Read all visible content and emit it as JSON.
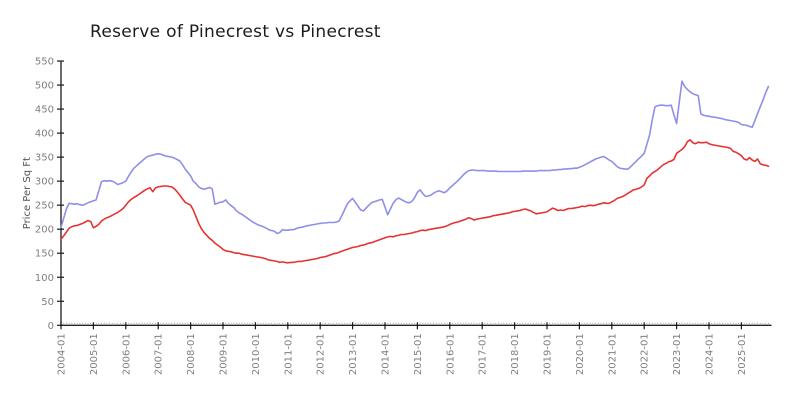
{
  "title": "Reserve of Pinecrest vs Pinecrest",
  "chart_data": {
    "type": "line",
    "title": "Reserve of Pinecrest vs Pinecrest",
    "xlabel": "",
    "ylabel": "Price Per Sq Ft",
    "ylim": [
      0,
      550
    ],
    "ytick_step": 50,
    "ytick_labels": [
      "0",
      "50",
      "100",
      "150",
      "200",
      "250",
      "300",
      "350",
      "400",
      "450",
      "500",
      "550"
    ],
    "x_start": "2004-01",
    "x_end": "2025-11",
    "x_frequency": "monthly",
    "xtick_labels": [
      "2004-01",
      "2005-01",
      "2006-01",
      "2007-01",
      "2008-01",
      "2009-01",
      "2010-01",
      "2011-01",
      "2012-01",
      "2013-01",
      "2014-01",
      "2015-01",
      "2016-01",
      "2017-01",
      "2018-01",
      "2019-01",
      "2020-01",
      "2021-01",
      "2022-01",
      "2023-01",
      "2024-01",
      "2025-01"
    ],
    "grid": false,
    "legend_position": "none",
    "axis_color": "#1a1a1a",
    "tick_label_color": "#7f7f7f",
    "series": [
      {
        "name": "Reserve of Pinecrest",
        "color": "#8f8fe8",
        "values": [
          204,
          223,
          242,
          254,
          253,
          252,
          253,
          251,
          250,
          252,
          255,
          257,
          259,
          261,
          280,
          299,
          301,
          300,
          301,
          300,
          297,
          293,
          295,
          297,
          300,
          310,
          319,
          327,
          332,
          337,
          342,
          347,
          351,
          353,
          354,
          356,
          357,
          356,
          354,
          352,
          351,
          350,
          348,
          345,
          342,
          334,
          325,
          318,
          311,
          300,
          295,
          288,
          285,
          283,
          285,
          287,
          284,
          252,
          254,
          256,
          257,
          261,
          254,
          249,
          245,
          238,
          234,
          231,
          227,
          223,
          219,
          215,
          212,
          209,
          207,
          205,
          202,
          199,
          197,
          196,
          191,
          193,
          199,
          198,
          198,
          199,
          199,
          201,
          203,
          204,
          205,
          207,
          208,
          209,
          210,
          211,
          212,
          213,
          213,
          214,
          214,
          214,
          215,
          217,
          228,
          240,
          252,
          259,
          264,
          256,
          248,
          240,
          238,
          244,
          250,
          255,
          257,
          259,
          261,
          262,
          246,
          230,
          242,
          254,
          261,
          265,
          262,
          259,
          256,
          255,
          258,
          266,
          277,
          282,
          274,
          268,
          269,
          271,
          275,
          278,
          280,
          278,
          276,
          280,
          286,
          291,
          296,
          301,
          307,
          313,
          318,
          322,
          323,
          323,
          322,
          322,
          322,
          322,
          321,
          321,
          321,
          321,
          320,
          320,
          320,
          320,
          320,
          320,
          320,
          320,
          320,
          321,
          321,
          321,
          321,
          321,
          321,
          322,
          322,
          322,
          322,
          322,
          323,
          323,
          324,
          324,
          325,
          325,
          326,
          326,
          327,
          327,
          329,
          331,
          334,
          337,
          340,
          343,
          346,
          348,
          350,
          351,
          348,
          344,
          341,
          336,
          330,
          327,
          326,
          325,
          325,
          330,
          336,
          341,
          347,
          352,
          358,
          377,
          396,
          428,
          455,
          457,
          458,
          458,
          457,
          457,
          458,
          438,
          420,
          465,
          508,
          497,
          491,
          486,
          482,
          480,
          478,
          440,
          437,
          436,
          435,
          434,
          433,
          432,
          431,
          430,
          428,
          427,
          426,
          425,
          424,
          422,
          418,
          417,
          416,
          414,
          412,
          426,
          441,
          455,
          469,
          484,
          497
        ]
      },
      {
        "name": "Pinecrest",
        "color": "#e53333",
        "values": [
          179,
          186,
          194,
          202,
          205,
          207,
          208,
          210,
          212,
          215,
          218,
          216,
          203,
          206,
          210,
          217,
          221,
          224,
          226,
          229,
          232,
          235,
          239,
          243,
          250,
          257,
          262,
          266,
          269,
          273,
          277,
          281,
          284,
          286,
          278,
          286,
          288,
          289,
          290,
          290,
          289,
          288,
          284,
          278,
          271,
          263,
          256,
          253,
          250,
          240,
          226,
          212,
          201,
          193,
          187,
          181,
          177,
          171,
          167,
          163,
          158,
          155,
          154,
          153,
          151,
          150,
          150,
          148,
          147,
          146,
          145,
          144,
          143,
          142,
          141,
          140,
          138,
          136,
          135,
          134,
          133,
          131,
          132,
          131,
          130,
          131,
          131,
          132,
          133,
          133,
          134,
          135,
          136,
          137,
          138,
          139,
          141,
          142,
          143,
          145,
          147,
          149,
          150,
          152,
          154,
          156,
          158,
          160,
          162,
          163,
          164,
          166,
          167,
          169,
          171,
          172,
          174,
          176,
          178,
          180,
          182,
          184,
          185,
          184,
          186,
          187,
          189,
          189,
          190,
          191,
          192,
          194,
          195,
          197,
          198,
          197,
          199,
          200,
          201,
          202,
          203,
          204,
          205,
          207,
          210,
          212,
          214,
          215,
          217,
          219,
          221,
          224,
          222,
          219,
          221,
          222,
          223,
          224,
          225,
          226,
          228,
          229,
          230,
          231,
          232,
          233,
          234,
          236,
          237,
          238,
          239,
          241,
          242,
          240,
          238,
          235,
          232,
          233,
          234,
          235,
          236,
          240,
          244,
          242,
          239,
          240,
          239,
          241,
          243,
          243,
          244,
          245,
          246,
          248,
          247,
          249,
          250,
          249,
          250,
          252,
          253,
          255,
          254,
          254,
          257,
          260,
          264,
          266,
          268,
          271,
          275,
          278,
          282,
          283,
          285,
          288,
          292,
          306,
          311,
          317,
          320,
          324,
          329,
          334,
          337,
          340,
          342,
          345,
          358,
          362,
          366,
          372,
          382,
          386,
          380,
          378,
          381,
          380,
          380,
          381,
          378,
          376,
          375,
          374,
          373,
          372,
          371,
          370,
          368,
          362,
          360,
          357,
          353,
          346,
          344,
          349,
          344,
          341,
          346,
          336,
          334,
          333,
          331
        ]
      }
    ]
  }
}
